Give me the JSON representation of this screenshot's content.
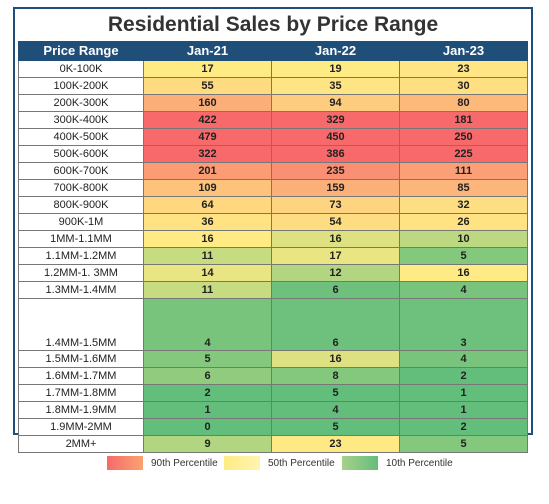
{
  "chart_data": {
    "type": "table",
    "title": "Residential Sales by Price Range",
    "columns": [
      "Price Range",
      "Jan-21",
      "Jan-22",
      "Jan-23"
    ],
    "rows": [
      {
        "label": "0K-100K",
        "values": [
          17,
          19,
          23
        ]
      },
      {
        "label": "100K-200K",
        "values": [
          55,
          35,
          30
        ]
      },
      {
        "label": "200K-300K",
        "values": [
          160,
          94,
          80
        ]
      },
      {
        "label": "300K-400K",
        "values": [
          422,
          329,
          181
        ]
      },
      {
        "label": "400K-500K",
        "values": [
          479,
          450,
          250
        ]
      },
      {
        "label": "500K-600K",
        "values": [
          322,
          386,
          225
        ]
      },
      {
        "label": "600K-700K",
        "values": [
          201,
          235,
          111
        ]
      },
      {
        "label": "700K-800K",
        "values": [
          109,
          159,
          85
        ]
      },
      {
        "label": "800K-900K",
        "values": [
          64,
          73,
          32
        ]
      },
      {
        "label": "900K-1M",
        "values": [
          36,
          54,
          26
        ]
      },
      {
        "label": "1MM-1.1MM",
        "values": [
          16,
          16,
          10
        ]
      },
      {
        "label": "1.1MM-1.2MM",
        "values": [
          11,
          17,
          5
        ]
      },
      {
        "label": "1.2MM-1. 3MM",
        "values": [
          14,
          12,
          16
        ]
      },
      {
        "label": "1.3MM-1.4MM",
        "values": [
          11,
          6,
          4
        ]
      },
      {
        "label": "1.4MM-1.5MM",
        "values": [
          4,
          6,
          3
        ]
      },
      {
        "label": "1.5MM-1.6MM",
        "values": [
          5,
          16,
          4
        ]
      },
      {
        "label": "1.6MM-1.7MM",
        "values": [
          6,
          8,
          2
        ]
      },
      {
        "label": "1.7MM-1.8MM",
        "values": [
          2,
          5,
          1
        ]
      },
      {
        "label": "1.8MM-1.9MM",
        "values": [
          1,
          4,
          1
        ]
      },
      {
        "label": "1.9MM-2MM",
        "values": [
          0,
          5,
          2
        ]
      },
      {
        "label": "2MM+",
        "values": [
          9,
          23,
          5
        ]
      }
    ],
    "legend": [
      {
        "label": "90th Percentile",
        "color": "#f8696b"
      },
      {
        "label": "50th Percentile",
        "color": "#ffeb84"
      },
      {
        "label": "10th Percentile",
        "color": "#63be7b"
      }
    ],
    "legend_placement": "bottom"
  }
}
